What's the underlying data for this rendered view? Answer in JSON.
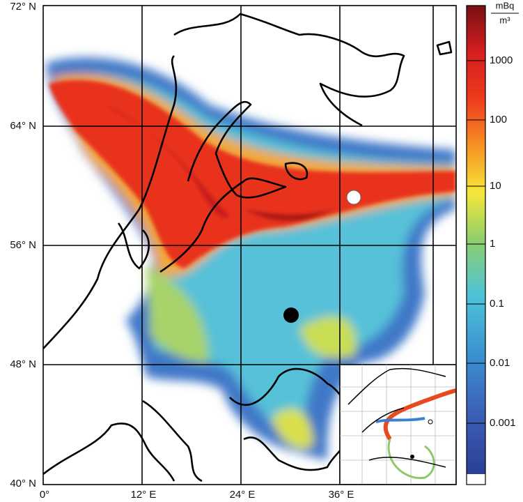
{
  "map": {
    "lat_labels": [
      "72° N",
      "64° N",
      "56° N",
      "48° N",
      "40° N"
    ],
    "lon_labels": [
      "0°",
      "12° E",
      "24° E",
      "36° E"
    ]
  },
  "colorbar": {
    "unit_top": "mBq",
    "unit_bottom": "m³",
    "labels": [
      "1000",
      "100",
      "10",
      "1",
      "0.1",
      "0.01",
      "0.001"
    ]
  }
}
